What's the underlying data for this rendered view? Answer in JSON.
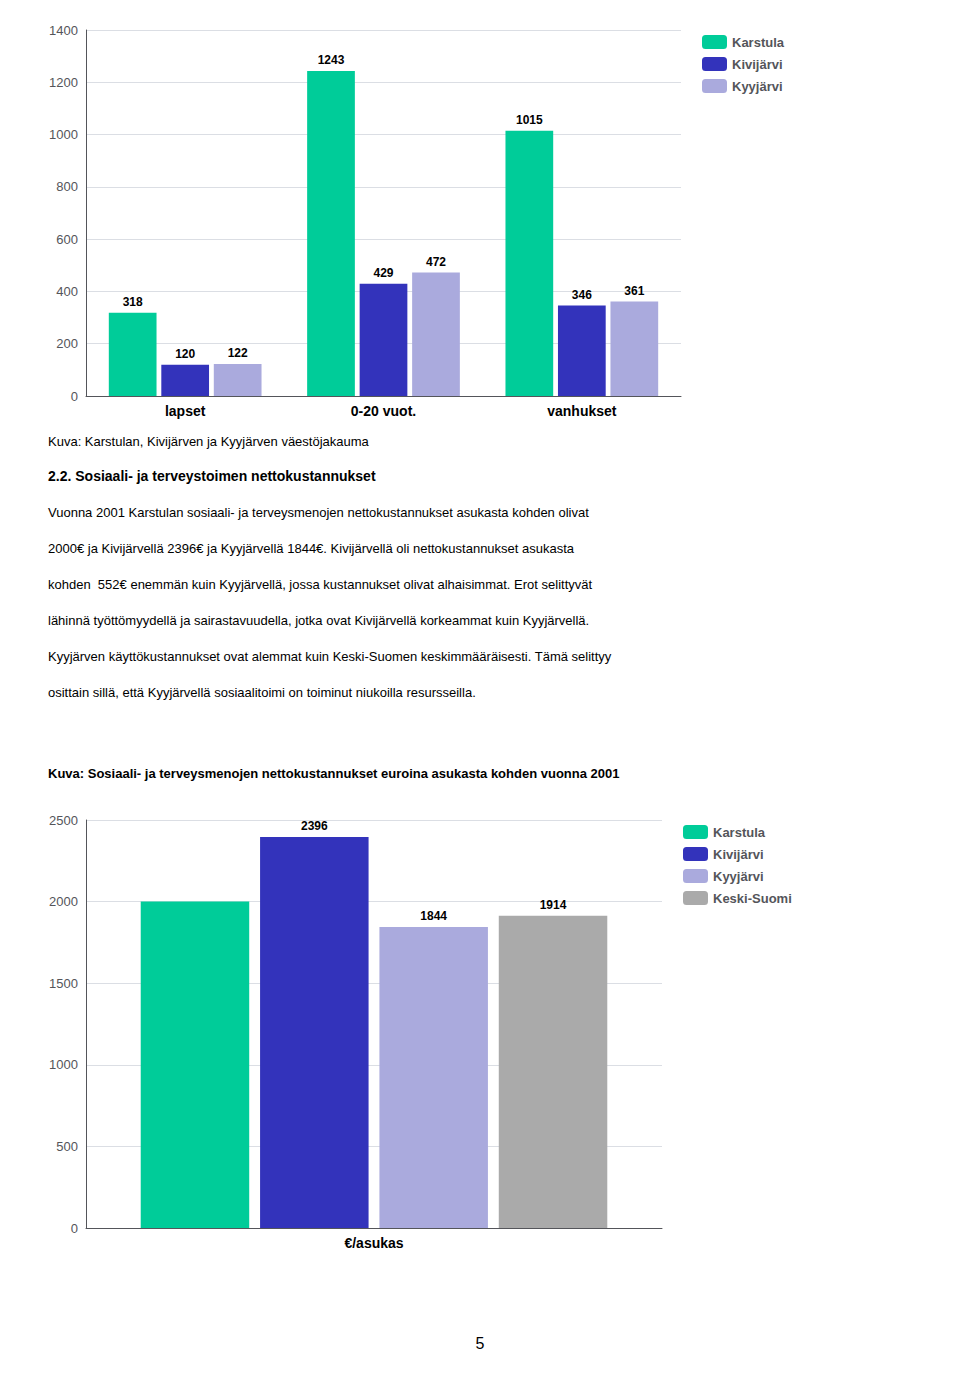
{
  "chart_data": [
    {
      "type": "bar",
      "categories": [
        "lapset",
        "0-20 vuot.",
        "vanhukset"
      ],
      "series": [
        {
          "name": "Karstula",
          "color": "#00CC99",
          "values": [
            318,
            1243,
            1015
          ]
        },
        {
          "name": "Kivijärvi",
          "color": "#3333BB",
          "values": [
            120,
            429,
            346
          ]
        },
        {
          "name": "Kyyjärvi",
          "color": "#AAAADD",
          "values": [
            122,
            472,
            361
          ]
        }
      ],
      "ylim": [
        0,
        1400
      ],
      "yticks": [
        0,
        200,
        400,
        600,
        800,
        1000,
        1200,
        1400
      ],
      "grid": true,
      "legend": "right",
      "data_labels": true,
      "annotations": [
        "Kuva: Karstulan, Kivijärven ja Kyyjärven väestöjakauma",
        "2.2. Sosiaali- ja terveystoimen nettokustannukset",
        "Vuonna 2001 Karstulan sosiaali- ja terveysmenojen nettokustannukset asukasta kohden olivat",
        "2000€ ja Kivijärvellä 2396€ ja Kyyjärvellä 1844€. Kivijärvellä oli nettokustannukset asukasta",
        "kohden  552€ enemmän kuin Kyyjärvellä, jossa kustannukset olivat alhaisimmat. Erot selittyvät",
        "lähinnä työttömyydellä ja sairastavuudella, jotka ovat Kivijärvellä korkeammat kuin Kyyjärvellä.",
        "Kyyjärven käyttökustannukset ovat alemmat kuin Keski-Suomen keskimmääräisesti. Tämä selittyy",
        "osittain sillä, että Kyyjärvellä sosiaalitoimi on toiminut niukoilla resursseilla."
      ]
    },
    {
      "type": "bar",
      "title": "Kuva: Sosiaali- ja terveysmenojen nettokustannukset euroina asukasta kohden vuonna 2001",
      "categories": [
        "€/asukas"
      ],
      "series": [
        {
          "name": "Karstula",
          "color": "#00CC99",
          "values": [
            2000
          ]
        },
        {
          "name": "Kivijärvi",
          "color": "#3333BB",
          "values": [
            2396
          ],
          "data_labels": true
        },
        {
          "name": "Kyyjärvi",
          "color": "#AAAADD",
          "values": [
            1844
          ],
          "data_labels": true
        },
        {
          "name": "Keski-Suomi",
          "color": "#AAAAAA",
          "values": [
            1914
          ],
          "data_labels": true
        }
      ],
      "ylim": [
        0,
        2500
      ],
      "yticks": [
        0,
        500,
        1000,
        1500,
        2000,
        2500
      ],
      "grid": true,
      "legend": "right",
      "annotations": [
        "5"
      ]
    }
  ]
}
